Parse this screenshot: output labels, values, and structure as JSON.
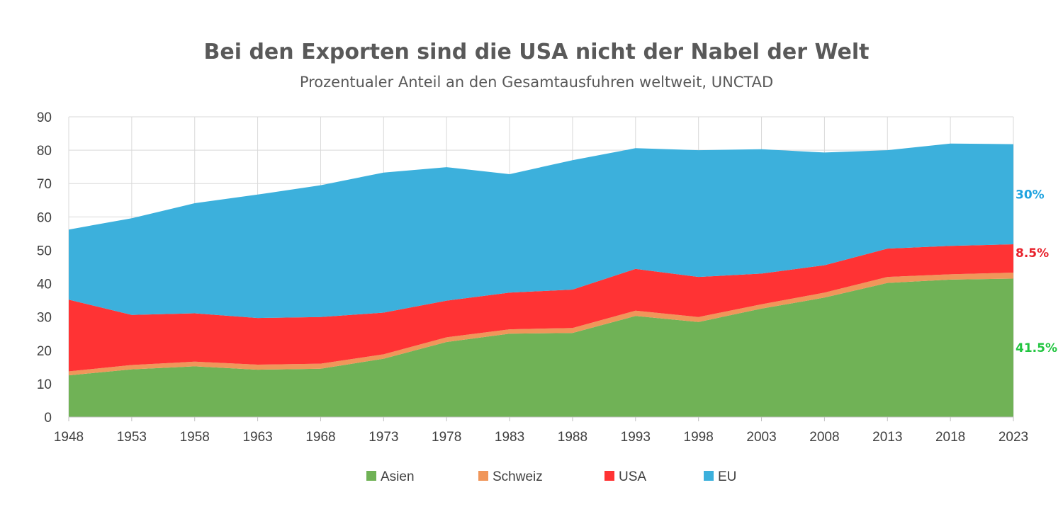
{
  "chart_data": {
    "type": "area",
    "stacked": true,
    "title": "Bei den Exporten sind die USA nicht der Nabel der Welt",
    "subtitle": "Prozentualer Anteil an den Gesamtausfuhren weltweit, UNCTAD",
    "xlabel": "",
    "ylabel": "",
    "xlim": [
      1948,
      2023
    ],
    "ylim": [
      0,
      90
    ],
    "yticks": [
      "0",
      "10",
      "20",
      "30",
      "40",
      "50",
      "60",
      "70",
      "80",
      "90"
    ],
    "xticks": [
      "1948",
      "1953",
      "1958",
      "1963",
      "1968",
      "1973",
      "1978",
      "1983",
      "1988",
      "1993",
      "1998",
      "2003",
      "2008",
      "2013",
      "2018",
      "2023"
    ],
    "grid": true,
    "legend_position": "bottom",
    "colors": {
      "Asien": "#70b256",
      "Schweiz": "#f0965a",
      "USA": "#ff3334",
      "EU": "#3cb0dc"
    },
    "x": [
      1948,
      1953,
      1958,
      1963,
      1968,
      1973,
      1978,
      1983,
      1988,
      1993,
      1998,
      2003,
      2008,
      2013,
      2018,
      2023
    ],
    "series": [
      {
        "name": "Asien",
        "values": [
          12.5,
          14.3,
          15.2,
          14.2,
          14.5,
          17.5,
          22.5,
          25.0,
          25.2,
          30.3,
          28.5,
          32.5,
          35.8,
          40.2,
          41.2,
          41.5
        ]
      },
      {
        "name": "Schweiz",
        "values": [
          1.2,
          1.3,
          1.4,
          1.5,
          1.5,
          1.3,
          1.4,
          1.3,
          1.5,
          1.6,
          1.5,
          1.3,
          1.5,
          1.8,
          1.6,
          1.8
        ]
      },
      {
        "name": "USA",
        "values": [
          21.5,
          15.0,
          14.5,
          14.0,
          14.0,
          12.5,
          11.0,
          11.0,
          11.5,
          12.5,
          12.0,
          9.2,
          8.2,
          8.5,
          8.5,
          8.5
        ]
      },
      {
        "name": "EU",
        "values": [
          21.0,
          29.0,
          33.0,
          37.0,
          39.5,
          42.0,
          40.0,
          35.5,
          38.8,
          36.2,
          38.0,
          37.3,
          33.8,
          29.5,
          30.7,
          30.0
        ]
      }
    ],
    "end_labels": [
      {
        "series": "EU",
        "text": "30%",
        "color": "#1fa3e0"
      },
      {
        "series": "USA",
        "text": "8.5%",
        "color": "#e8212b"
      },
      {
        "series": "Asien",
        "text": "41.5%",
        "color": "#22c540"
      }
    ]
  }
}
